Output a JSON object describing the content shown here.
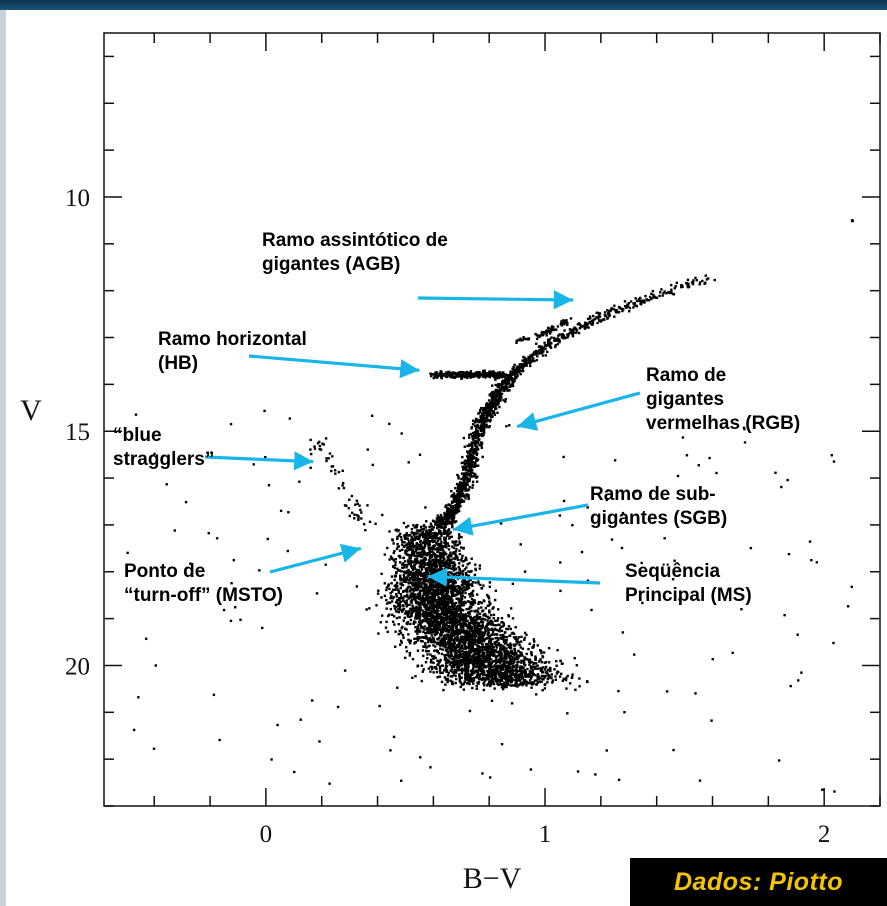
{
  "chart_data": {
    "type": "scatter",
    "title": "",
    "xlabel": "B−V",
    "ylabel": "V",
    "xlim": [
      -0.58,
      2.2
    ],
    "ylim": [
      23.0,
      6.5
    ],
    "y_inverted": true,
    "x_ticks": [
      {
        "value": 0,
        "label": "0"
      },
      {
        "value": 1,
        "label": "1"
      },
      {
        "value": 2,
        "label": "2"
      }
    ],
    "y_ticks": [
      {
        "value": 10,
        "label": "10"
      },
      {
        "value": 15,
        "label": "15"
      },
      {
        "value": 20,
        "label": "20"
      }
    ],
    "x_minor_step": 0.2,
    "y_minor_step": 1,
    "marker_color": "#000000",
    "arrow_color": "#1ab5e8",
    "annotations": [
      {
        "id": "agb",
        "lines": [
          "Ramo assintótico de",
          "gigantes (AGB)"
        ],
        "arrow_to": [
          1.1,
          12.2
        ]
      },
      {
        "id": "hb",
        "lines": [
          "Ramo horizontal",
          "(HB)"
        ],
        "arrow_to": [
          0.55,
          13.7
        ]
      },
      {
        "id": "rgb",
        "lines": [
          "Ramo de",
          "gigantes",
          "vermelhas (RGB)"
        ],
        "arrow_to": [
          0.9,
          14.9
        ]
      },
      {
        "id": "bs",
        "lines": [
          "“blue",
          "stragglers”"
        ],
        "arrow_to": [
          0.17,
          15.65
        ]
      },
      {
        "id": "sgb",
        "lines": [
          "Ramo de sub-",
          "gigantes (SGB)"
        ],
        "arrow_to": [
          0.67,
          17.1
        ]
      },
      {
        "id": "msto",
        "lines": [
          "Ponto de",
          "“turn-off” (MSTO)"
        ],
        "arrow_to": [
          0.34,
          17.5
        ]
      },
      {
        "id": "ms",
        "lines": [
          "Seqüência",
          "Principal (MS)"
        ],
        "arrow_to": [
          0.58,
          18.1
        ]
      }
    ],
    "sequences": [
      {
        "name": "MS",
        "points": [
          [
            0.47,
            20.0
          ],
          [
            0.5,
            19.0
          ],
          [
            0.52,
            18.0
          ],
          [
            0.56,
            17.3
          ],
          [
            0.63,
            17.0
          ]
        ]
      },
      {
        "name": "SGB",
        "points": [
          [
            0.63,
            17.0
          ],
          [
            0.68,
            16.6
          ],
          [
            0.72,
            16.0
          ],
          [
            0.75,
            15.2
          ],
          [
            0.8,
            14.5
          ],
          [
            0.88,
            13.8
          ]
        ]
      },
      {
        "name": "RGB",
        "points": [
          [
            0.88,
            13.8
          ],
          [
            1.0,
            13.2
          ],
          [
            1.15,
            12.7
          ],
          [
            1.35,
            12.2
          ],
          [
            1.6,
            11.7
          ]
        ]
      },
      {
        "name": "AGB",
        "points": [
          [
            0.9,
            13.1
          ],
          [
            1.0,
            12.9
          ],
          [
            1.1,
            12.6
          ]
        ]
      },
      {
        "name": "HB",
        "points": [
          [
            0.6,
            13.8
          ],
          [
            0.85,
            13.8
          ]
        ]
      },
      {
        "name": "blue stragglers",
        "points": [
          [
            0.1,
            16.0
          ],
          [
            0.2,
            15.3
          ],
          [
            0.3,
            16.6
          ],
          [
            0.4,
            17.0
          ]
        ]
      }
    ]
  },
  "credit": "Dados: Piotto"
}
